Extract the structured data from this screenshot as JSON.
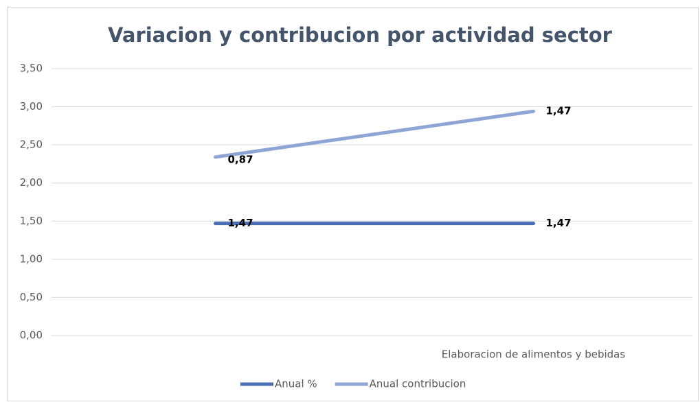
{
  "chart_data": {
    "type": "line",
    "stacked": true,
    "title": "Variacion y contribucion por actividad sector",
    "categories": [
      null,
      "Elaboracion de alimentos y bebidas"
    ],
    "series": [
      {
        "name": "Anual %",
        "color": "#4a6fb5",
        "values": [
          1.47,
          1.47
        ],
        "value_labels": [
          "1,47",
          "1,47"
        ]
      },
      {
        "name": "Anual contribucion",
        "color": "#8fa5d6",
        "values": [
          0.87,
          1.47
        ],
        "value_labels": [
          "0,87",
          "1,47"
        ]
      }
    ],
    "ylim": [
      0,
      3.5
    ],
    "yticks": [
      {
        "value": 0,
        "label": "0,00"
      },
      {
        "value": 0.5,
        "label": "0,50"
      },
      {
        "value": 1,
        "label": "1,00"
      },
      {
        "value": 1.5,
        "label": "1,50"
      },
      {
        "value": 2,
        "label": "2,00"
      },
      {
        "value": 2.5,
        "label": "2,50"
      },
      {
        "value": 3,
        "label": "3,00"
      },
      {
        "value": 3.5,
        "label": "3,50"
      }
    ],
    "grid": true,
    "legend": "bottom"
  }
}
